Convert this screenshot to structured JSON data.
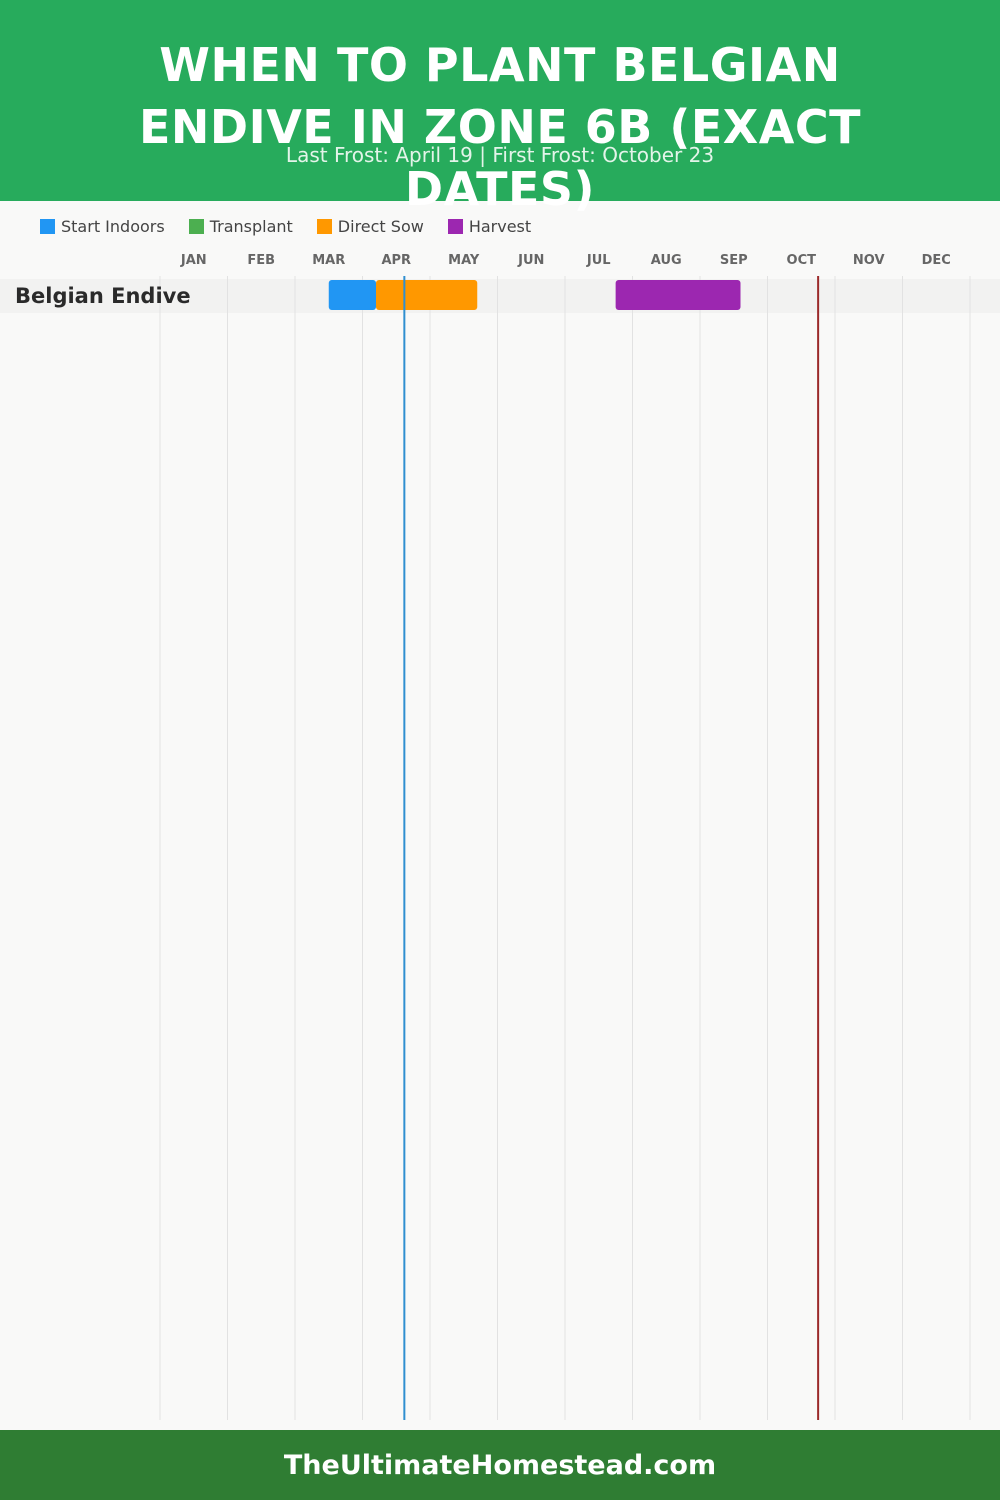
{
  "header": {
    "title": "WHEN TO PLANT BELGIAN ENDIVE IN ZONE 6B (EXACT DATES)",
    "subtitle": "Last Frost: April 19 | First Frost: October 23"
  },
  "legend": [
    {
      "label": "Start Indoors",
      "color": "#2196f3"
    },
    {
      "label": "Transplant",
      "color": "#4caf50"
    },
    {
      "label": "Direct Sow",
      "color": "#ff9800"
    },
    {
      "label": "Harvest",
      "color": "#9c27b0"
    }
  ],
  "chart_data": {
    "type": "gantt",
    "months": [
      "JAN",
      "FEB",
      "MAR",
      "APR",
      "MAY",
      "JUN",
      "JUL",
      "AUG",
      "SEP",
      "OCT",
      "NOV",
      "DEC"
    ],
    "rows": [
      {
        "name": "Belgian Endive",
        "segments": [
          {
            "activity": "Start Indoors",
            "start": "Mar 15",
            "end": "Apr 4",
            "start_month": 2.5,
            "end_month": 3.2,
            "color": "#2196f3"
          },
          {
            "activity": "Direct Sow",
            "start": "Apr 4",
            "end": "May 20",
            "start_month": 3.2,
            "end_month": 4.7,
            "color": "#ff9800"
          },
          {
            "activity": "Harvest",
            "start": "Jul 22",
            "end": "Sep 15",
            "start_month": 6.75,
            "end_month": 8.6,
            "color": "#9c27b0"
          }
        ]
      }
    ],
    "markers": [
      {
        "name": "Last Frost",
        "date": "April 19",
        "month": 3.62,
        "color": "#2f8fd0"
      },
      {
        "name": "First Frost",
        "date": "October 23",
        "month": 9.75,
        "color": "#9b2a2a"
      }
    ],
    "grid": true
  },
  "footer": {
    "site": "TheUltimateHomestead.com"
  }
}
